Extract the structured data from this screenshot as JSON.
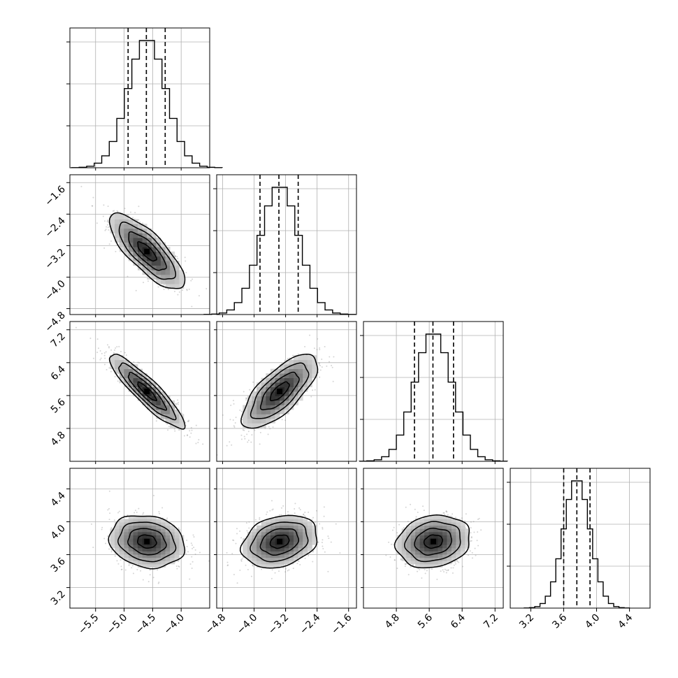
{
  "chart_data": {
    "type": "corner",
    "params": [
      {
        "index": 0,
        "range": [
          -5.95,
          -3.5
        ],
        "ticks": [
          -5.5,
          -5.0,
          -4.5,
          -4.0
        ],
        "tick_labels": [
          "−5.5",
          "−5.0",
          "−4.5",
          "−4.0"
        ],
        "mean": -4.6,
        "q16": -4.93,
        "q50": -4.61,
        "q84": -4.28,
        "sd": 0.33
      },
      {
        "index": 1,
        "range": [
          -4.95,
          -1.4
        ],
        "ticks": [
          -4.8,
          -4.0,
          -3.2,
          -2.4,
          -1.6
        ],
        "tick_labels": [
          "−4.8",
          "−4.0",
          "−3.2",
          "−2.4",
          "−1.6"
        ],
        "mean": -3.35,
        "q16": -3.85,
        "q50": -3.37,
        "q84": -2.88,
        "sd": 0.48
      },
      {
        "index": 2,
        "range": [
          4.0,
          7.4
        ],
        "ticks": [
          4.8,
          5.6,
          6.4,
          7.2
        ],
        "tick_labels": [
          "4.8",
          "5.6",
          "6.4",
          "7.2"
        ],
        "mean": 5.7,
        "q16": 5.24,
        "q50": 5.69,
        "q84": 6.19,
        "sd": 0.45
      },
      {
        "index": 3,
        "range": [
          2.95,
          4.65
        ],
        "ticks": [
          3.2,
          3.6,
          4.0,
          4.4
        ],
        "tick_labels": [
          "3.2",
          "3.6",
          "4.0",
          "4.4"
        ],
        "mean": 3.76,
        "q16": 3.6,
        "q50": 3.76,
        "q84": 3.92,
        "sd": 0.16
      }
    ],
    "correlations": [
      {
        "pair": [
          0,
          1
        ],
        "rho": -0.78
      },
      {
        "pair": [
          0,
          2
        ],
        "rho": -0.9
      },
      {
        "pair": [
          1,
          2
        ],
        "rho": 0.72
      },
      {
        "pair": [
          0,
          3
        ],
        "rho": -0.15
      },
      {
        "pair": [
          1,
          3
        ],
        "rho": 0.25
      },
      {
        "pair": [
          2,
          3
        ],
        "rho": 0.15
      }
    ],
    "histogram_bins": 20,
    "contour_levels_sigma": [
      0.5,
      1.0,
      1.5,
      2.0
    ],
    "grid": true,
    "colors": {
      "lines": "#000000",
      "points": "#888888",
      "grid": "#b0b0b0"
    }
  }
}
